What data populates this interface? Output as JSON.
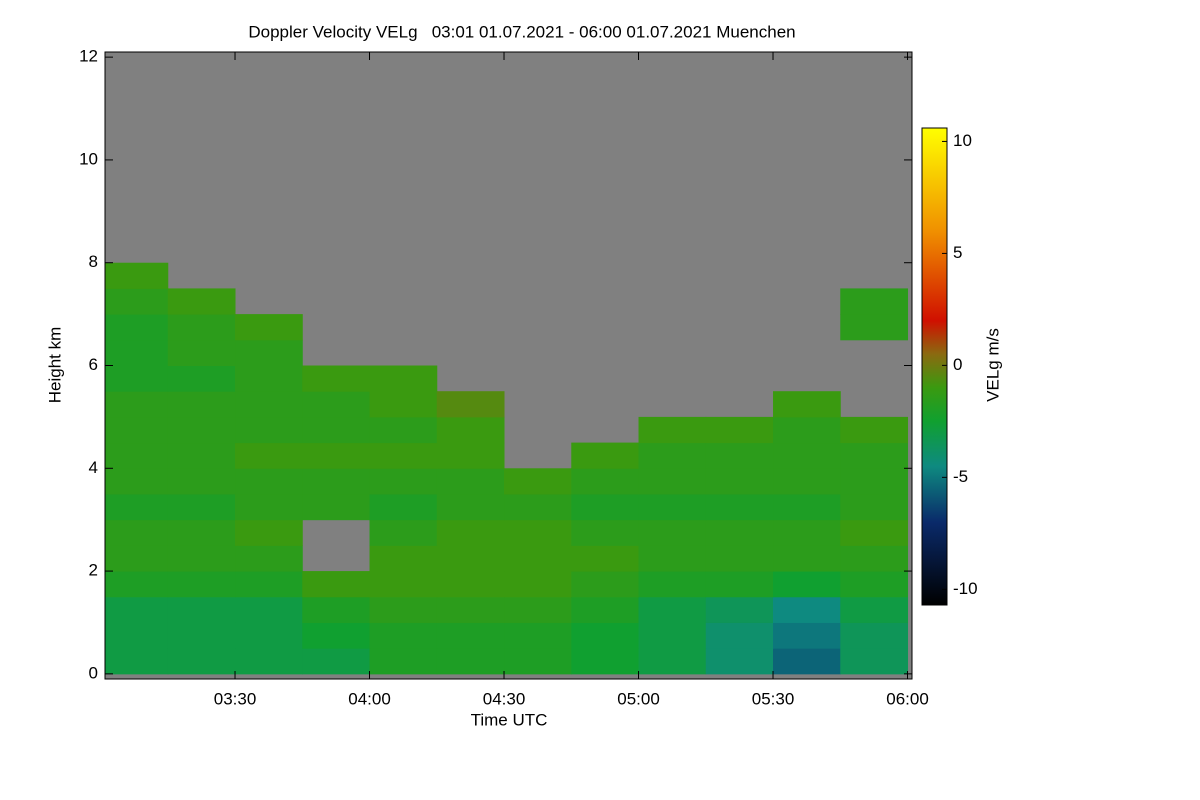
{
  "chart_data": {
    "type": "heatmap",
    "title": "Doppler Velocity VELg   03:01 01.07.2021 - 06:00 01.07.2021 Muenchen",
    "x_label": "Time UTC",
    "y_label": "Height km",
    "colorbar_label": "VELg m/s",
    "no_signal_color": "#808080",
    "x_bins": [
      181,
      195,
      210,
      225,
      240,
      255,
      270,
      285,
      300,
      315,
      330,
      345,
      360
    ],
    "y_bins": [
      0,
      0.5,
      1,
      1.5,
      2,
      2.5,
      3,
      3.5,
      4,
      4.5,
      5,
      5.5,
      6,
      6.5,
      7,
      7.5,
      8,
      12
    ],
    "z": [
      [
        -3,
        -3,
        -3,
        -3,
        -2,
        -2,
        -2,
        -2.5,
        -3,
        -4,
        -5.5,
        -3.5
      ],
      [
        -3,
        -3,
        -3,
        -2.5,
        -2,
        -2,
        -2,
        -2.5,
        -3,
        -4,
        -5,
        -3.5
      ],
      [
        -3,
        -3,
        -3,
        -2,
        -1.5,
        -1.5,
        -1.5,
        -2,
        -3,
        -3.5,
        -4.5,
        -3
      ],
      [
        -2,
        -2,
        -2,
        -1,
        -1,
        -1,
        -1,
        -1.5,
        -2,
        -2,
        -2.5,
        -2
      ],
      [
        -1.5,
        -1.5,
        -1.5,
        null,
        -1,
        -1,
        -1,
        -1,
        -1.5,
        -1.5,
        -1.5,
        -1.5
      ],
      [
        -1.5,
        -1.5,
        -1,
        null,
        -1.5,
        -1,
        -1,
        -1.5,
        -1.5,
        -1.5,
        -1.5,
        -1
      ],
      [
        -2,
        -2,
        -1.5,
        -1.5,
        -2,
        -1.5,
        -1.5,
        -2,
        -2,
        -2,
        -2,
        -1.5
      ],
      [
        -1.5,
        -1.5,
        -1.5,
        -1.5,
        -1.5,
        -1.5,
        -1,
        -1.5,
        -1.5,
        -1.5,
        -1.5,
        -1.5
      ],
      [
        -1.5,
        -1.5,
        -1,
        -1,
        -1,
        -1,
        null,
        -1,
        -1.5,
        -1.5,
        -1.5,
        -1.5
      ],
      [
        -1.5,
        -1.5,
        -1.5,
        -1.5,
        -1.5,
        -1,
        null,
        null,
        -1,
        -1,
        -1.5,
        -1
      ],
      [
        -1.5,
        -1.5,
        -1.5,
        -1.5,
        -1,
        -0.5,
        null,
        null,
        null,
        null,
        -1,
        null
      ],
      [
        -2,
        -2,
        -1.5,
        -1,
        -1,
        null,
        null,
        null,
        null,
        null,
        null,
        null
      ],
      [
        -2,
        -1.5,
        -1.5,
        null,
        null,
        null,
        null,
        null,
        null,
        null,
        null,
        null
      ],
      [
        -2,
        -1.5,
        -1,
        null,
        null,
        null,
        null,
        null,
        null,
        null,
        null,
        -1.5
      ],
      [
        -1.5,
        -1,
        null,
        null,
        null,
        null,
        null,
        null,
        null,
        null,
        null,
        -1.5
      ],
      [
        -1,
        null,
        null,
        null,
        null,
        null,
        null,
        null,
        null,
        null,
        null,
        null
      ],
      [
        null,
        null,
        null,
        null,
        null,
        null,
        null,
        null,
        null,
        null,
        null,
        null
      ]
    ],
    "xlim": [
      181,
      361
    ],
    "ylim": [
      -0.1,
      12.1
    ],
    "xticks": [
      {
        "value": 210,
        "label": "03:30"
      },
      {
        "value": 240,
        "label": "04:00"
      },
      {
        "value": 270,
        "label": "04:30"
      },
      {
        "value": 300,
        "label": "05:00"
      },
      {
        "value": 330,
        "label": "05:30"
      },
      {
        "value": 360,
        "label": "06:00"
      }
    ],
    "yticks": [
      0,
      2,
      4,
      6,
      8,
      10,
      12
    ],
    "clim": [
      -10.7,
      10.6
    ],
    "cticks": [
      -10,
      -5,
      0,
      5,
      10
    ],
    "colorscale": [
      [
        -10.7,
        "#000000"
      ],
      [
        -7,
        "#0a2a6a"
      ],
      [
        -4.5,
        "#0e8a80"
      ],
      [
        -2.5,
        "#10a030"
      ],
      [
        -1,
        "#3a9a10"
      ],
      [
        0.5,
        "#8a6a10"
      ],
      [
        2,
        "#d01000"
      ],
      [
        6,
        "#f09000"
      ],
      [
        10.6,
        "#ffff00"
      ]
    ]
  }
}
